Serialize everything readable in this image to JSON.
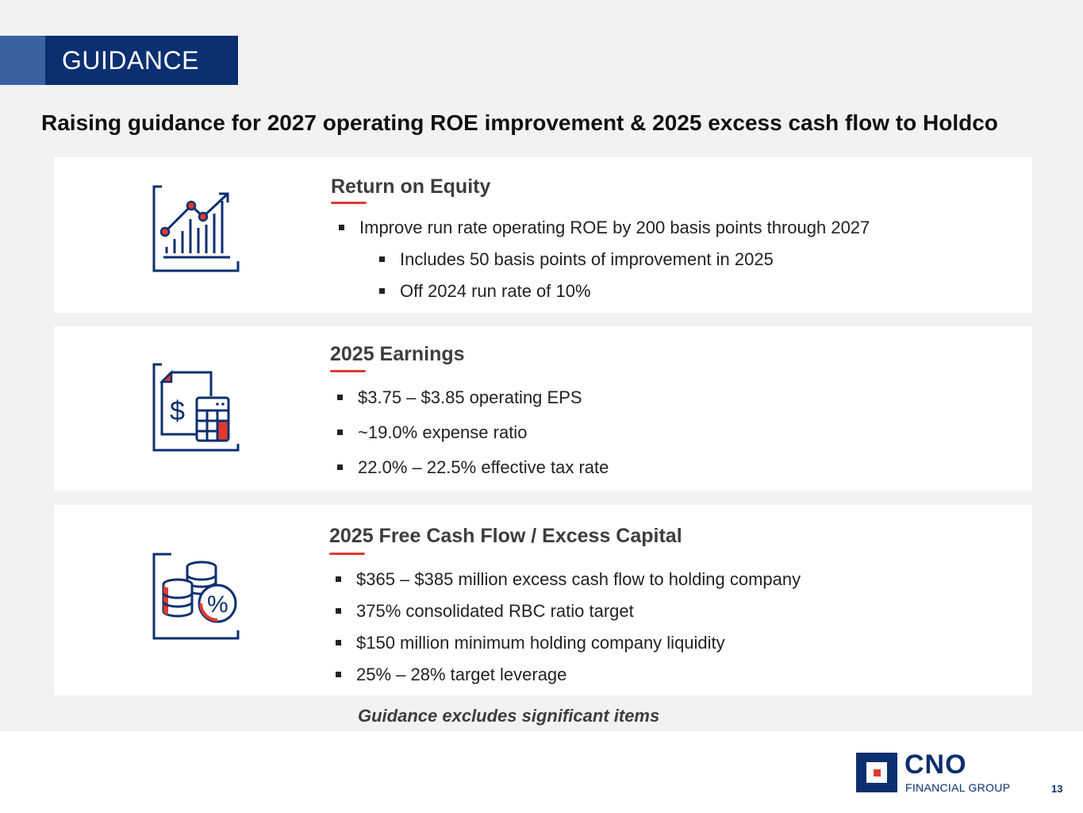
{
  "section": {
    "label": "GUIDANCE"
  },
  "headline": "Raising guidance for 2027 operating ROE improvement & 2025 excess cash flow to Holdco",
  "cards": [
    {
      "title": "Return on Equity",
      "icon": "growth-chart-icon",
      "bullets": [
        {
          "text": "Improve run rate operating ROE by 200 basis points through 2027",
          "level": 1
        },
        {
          "text": "Includes 50 basis points of improvement in 2025",
          "level": 2
        },
        {
          "text": "Off 2024 run rate of 10%",
          "level": 2
        }
      ]
    },
    {
      "title": "2025 Earnings",
      "icon": "invoice-calculator-icon",
      "bullets": [
        {
          "text": "$3.75 – $3.85 operating EPS",
          "level": 1
        },
        {
          "text": "~19.0% expense ratio",
          "level": 1
        },
        {
          "text": "22.0% – 22.5% effective tax rate",
          "level": 1
        }
      ]
    },
    {
      "title": "2025 Free Cash Flow / Excess Capital",
      "icon": "coins-percent-icon",
      "bullets": [
        {
          "text": "$365 – $385 million excess cash flow to holding company",
          "level": 1
        },
        {
          "text": "375% consolidated RBC ratio target",
          "level": 1
        },
        {
          "text": "$150 million minimum holding company liquidity",
          "level": 1
        },
        {
          "text": "25% – 28% target leverage",
          "level": 1
        }
      ]
    }
  ],
  "footnote": "Guidance excludes significant items",
  "logo": {
    "name": "CNO",
    "subtitle": "FINANCIAL GROUP"
  },
  "page_number": "13",
  "colors": {
    "navy": "#0b2f70",
    "accent_blue": "#3a62a3",
    "red": "#e03a2f",
    "background": "#f2f2f2"
  }
}
